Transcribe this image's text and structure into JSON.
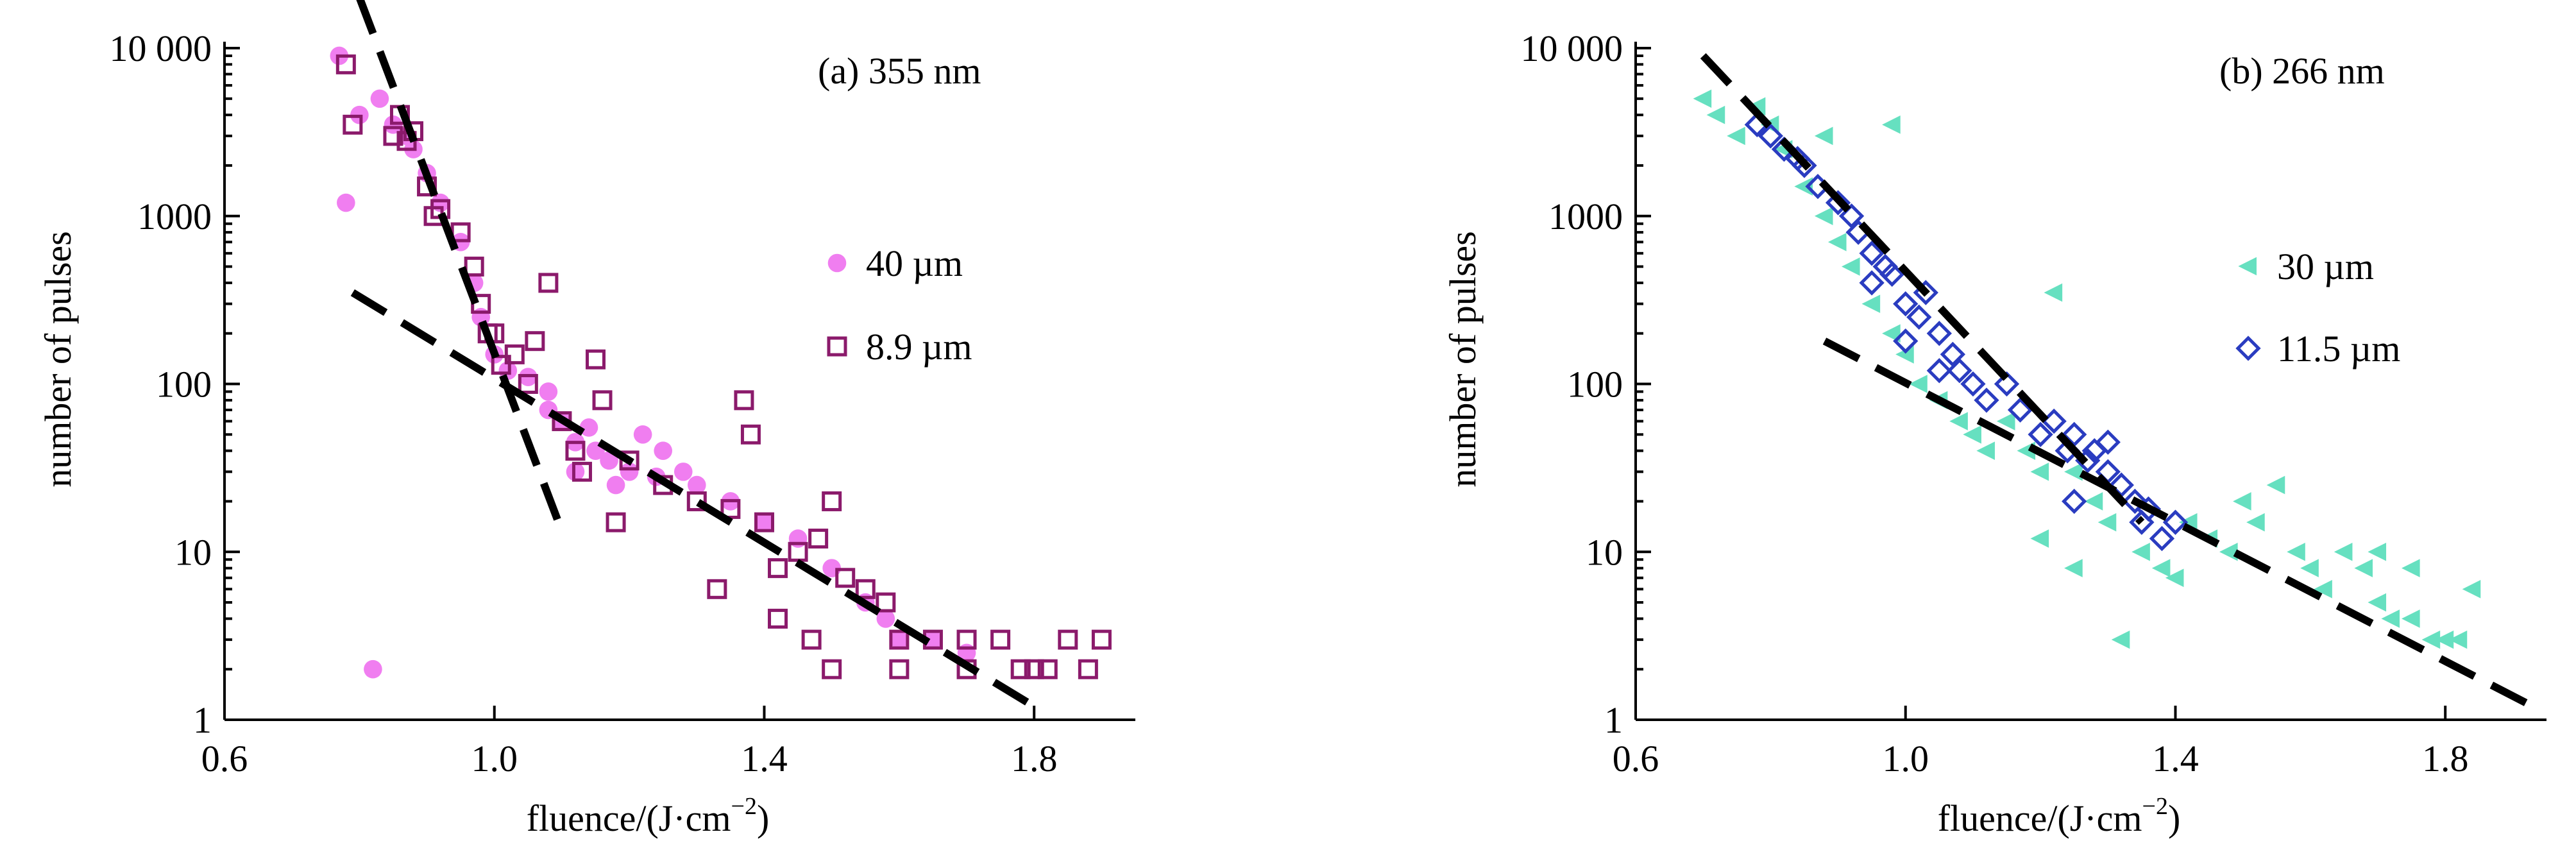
{
  "chart_data": [
    {
      "type": "scatter",
      "title": "(a) 355 nm",
      "xlabel": "fluence/(J·cm",
      "xlabel_sup": "−2",
      "xlabel_end": ")",
      "ylabel": "number of pulses",
      "xlim": [
        0.6,
        1.95
      ],
      "ylim": [
        1,
        10000
      ],
      "yscale": "log",
      "xticks": [
        {
          "v": 0.6,
          "label": "0.6"
        },
        {
          "v": 1.0,
          "label": "1.0"
        },
        {
          "v": 1.4,
          "label": "1.4"
        },
        {
          "v": 1.8,
          "label": "1.8"
        }
      ],
      "yticks": [
        {
          "v": 1,
          "label": "1"
        },
        {
          "v": 10,
          "label": "10"
        },
        {
          "v": 100,
          "label": "100"
        },
        {
          "v": 1000,
          "label": "1000"
        },
        {
          "v": 10000,
          "label": "10 000"
        }
      ],
      "legend_position": "right",
      "series": [
        {
          "name": "40 µm",
          "marker": "circle",
          "color": "#f07ef0",
          "points": [
            [
              0.77,
              9000
            ],
            [
              0.78,
              1200
            ],
            [
              0.8,
              4000
            ],
            [
              0.82,
              2
            ],
            [
              0.83,
              5000
            ],
            [
              0.85,
              3500
            ],
            [
              0.87,
              3000
            ],
            [
              0.88,
              2500
            ],
            [
              0.9,
              1800
            ],
            [
              0.92,
              1200
            ],
            [
              0.95,
              700
            ],
            [
              0.97,
              400
            ],
            [
              0.98,
              250
            ],
            [
              1.0,
              150
            ],
            [
              1.02,
              120
            ],
            [
              1.05,
              110
            ],
            [
              1.08,
              90
            ],
            [
              1.1,
              60
            ],
            [
              1.12,
              45
            ],
            [
              1.15,
              40
            ],
            [
              1.17,
              35
            ],
            [
              1.2,
              30
            ],
            [
              1.22,
              50
            ],
            [
              1.25,
              40
            ],
            [
              1.28,
              30
            ],
            [
              1.3,
              25
            ],
            [
              1.35,
              20
            ],
            [
              1.4,
              15
            ],
            [
              1.45,
              12
            ],
            [
              1.5,
              8
            ],
            [
              1.55,
              5
            ],
            [
              1.58,
              4
            ],
            [
              1.6,
              3
            ],
            [
              1.65,
              3
            ],
            [
              1.7,
              2.5
            ],
            [
              1.12,
              30
            ],
            [
              1.18,
              25
            ],
            [
              1.08,
              70
            ],
            [
              1.14,
              55
            ],
            [
              1.24,
              28
            ]
          ]
        },
        {
          "name": "8.9 µm",
          "marker": "square",
          "color": "#8b1a6b",
          "points": [
            [
              0.78,
              8000
            ],
            [
              0.79,
              3500
            ],
            [
              0.85,
              3000
            ],
            [
              0.86,
              4000
            ],
            [
              0.87,
              2800
            ],
            [
              0.88,
              3200
            ],
            [
              0.9,
              1500
            ],
            [
              0.91,
              1000
            ],
            [
              0.92,
              1100
            ],
            [
              0.95,
              800
            ],
            [
              0.97,
              500
            ],
            [
              0.98,
              300
            ],
            [
              0.99,
              200
            ],
            [
              1.0,
              200
            ],
            [
              1.01,
              130
            ],
            [
              1.03,
              150
            ],
            [
              1.05,
              100
            ],
            [
              1.06,
              180
            ],
            [
              1.08,
              400
            ],
            [
              1.1,
              60
            ],
            [
              1.12,
              40
            ],
            [
              1.13,
              30
            ],
            [
              1.15,
              140
            ],
            [
              1.16,
              80
            ],
            [
              1.18,
              15
            ],
            [
              1.2,
              35
            ],
            [
              1.25,
              25
            ],
            [
              1.3,
              20
            ],
            [
              1.35,
              18
            ],
            [
              1.37,
              80
            ],
            [
              1.38,
              50
            ],
            [
              1.4,
              15
            ],
            [
              1.42,
              8
            ],
            [
              1.45,
              10
            ],
            [
              1.48,
              12
            ],
            [
              1.5,
              20
            ],
            [
              1.52,
              7
            ],
            [
              1.55,
              6
            ],
            [
              1.58,
              5
            ],
            [
              1.6,
              3
            ],
            [
              1.65,
              3
            ],
            [
              1.7,
              3
            ],
            [
              1.75,
              3
            ],
            [
              1.8,
              2
            ],
            [
              1.85,
              3
            ],
            [
              1.88,
              2
            ],
            [
              1.9,
              3
            ],
            [
              1.5,
              2
            ],
            [
              1.6,
              2
            ],
            [
              1.7,
              2
            ],
            [
              1.78,
              2
            ],
            [
              1.82,
              2
            ],
            [
              1.33,
              6
            ],
            [
              1.42,
              4
            ],
            [
              1.47,
              3
            ]
          ]
        }
      ],
      "fit_lines": [
        {
          "x1": 0.8,
          "y1": 20000,
          "x2": 1.095,
          "y2": 15
        },
        {
          "x1": 0.79,
          "y1": 350,
          "x2": 1.8,
          "y2": 1.2
        }
      ]
    },
    {
      "type": "scatter",
      "title": "(b) 266 nm",
      "xlabel": "fluence/(J·cm",
      "xlabel_sup": "−2",
      "xlabel_end": ")",
      "ylabel": "number of pulses",
      "xlim": [
        0.6,
        1.95
      ],
      "ylim": [
        1,
        10000
      ],
      "yscale": "log",
      "xticks": [
        {
          "v": 0.6,
          "label": "0.6"
        },
        {
          "v": 1.0,
          "label": "1.0"
        },
        {
          "v": 1.4,
          "label": "1.4"
        },
        {
          "v": 1.8,
          "label": "1.8"
        }
      ],
      "yticks": [
        {
          "v": 1,
          "label": "1"
        },
        {
          "v": 10,
          "label": "10"
        },
        {
          "v": 100,
          "label": "100"
        },
        {
          "v": 1000,
          "label": "1000"
        },
        {
          "v": 10000,
          "label": "10 000"
        }
      ],
      "legend_position": "right",
      "series": [
        {
          "name": "30 µm",
          "marker": "triangle-left",
          "color": "#66e0c0",
          "points": [
            [
              0.7,
              5000
            ],
            [
              0.72,
              4000
            ],
            [
              0.75,
              3000
            ],
            [
              0.78,
              4500
            ],
            [
              0.8,
              3500
            ],
            [
              0.82,
              2500
            ],
            [
              0.85,
              1500
            ],
            [
              0.88,
              1000
            ],
            [
              0.9,
              700
            ],
            [
              0.92,
              500
            ],
            [
              0.95,
              300
            ],
            [
              0.98,
              200
            ],
            [
              1.0,
              150
            ],
            [
              1.02,
              100
            ],
            [
              1.05,
              80
            ],
            [
              1.08,
              60
            ],
            [
              1.1,
              50
            ],
            [
              1.12,
              40
            ],
            [
              1.15,
              60
            ],
            [
              1.18,
              40
            ],
            [
              1.2,
              30
            ],
            [
              1.22,
              350
            ],
            [
              1.25,
              30
            ],
            [
              1.28,
              20
            ],
            [
              1.3,
              15
            ],
            [
              1.32,
              3
            ],
            [
              1.35,
              10
            ],
            [
              1.38,
              8
            ],
            [
              1.4,
              7
            ],
            [
              1.42,
              15
            ],
            [
              1.45,
              12
            ],
            [
              1.48,
              10
            ],
            [
              1.5,
              20
            ],
            [
              1.52,
              15
            ],
            [
              1.55,
              25
            ],
            [
              1.58,
              10
            ],
            [
              1.6,
              8
            ],
            [
              1.62,
              6
            ],
            [
              1.65,
              10
            ],
            [
              1.68,
              8
            ],
            [
              1.7,
              5
            ],
            [
              1.72,
              4
            ],
            [
              1.75,
              4
            ],
            [
              1.78,
              3
            ],
            [
              1.8,
              3
            ],
            [
              1.82,
              3
            ],
            [
              1.84,
              6
            ],
            [
              1.75,
              8
            ],
            [
              1.7,
              10
            ],
            [
              0.88,
              3000
            ],
            [
              0.98,
              3500
            ],
            [
              1.2,
              12
            ],
            [
              1.25,
              8
            ]
          ]
        },
        {
          "name": "11.5 µm",
          "marker": "diamond",
          "color": "#2a3cc0",
          "points": [
            [
              0.78,
              3500
            ],
            [
              0.8,
              3000
            ],
            [
              0.82,
              2500
            ],
            [
              0.84,
              2200
            ],
            [
              0.85,
              2000
            ],
            [
              0.87,
              1500
            ],
            [
              0.9,
              1200
            ],
            [
              0.92,
              1000
            ],
            [
              0.93,
              800
            ],
            [
              0.95,
              600
            ],
            [
              0.97,
              500
            ],
            [
              0.98,
              450
            ],
            [
              1.0,
              300
            ],
            [
              1.02,
              250
            ],
            [
              1.03,
              350
            ],
            [
              1.05,
              200
            ],
            [
              1.07,
              150
            ],
            [
              1.08,
              120
            ],
            [
              1.1,
              100
            ],
            [
              1.12,
              80
            ],
            [
              1.15,
              100
            ],
            [
              1.17,
              70
            ],
            [
              1.2,
              50
            ],
            [
              1.22,
              60
            ],
            [
              1.24,
              40
            ],
            [
              1.25,
              50
            ],
            [
              1.27,
              35
            ],
            [
              1.28,
              40
            ],
            [
              1.3,
              30
            ],
            [
              1.32,
              25
            ],
            [
              1.34,
              20
            ],
            [
              1.35,
              15
            ],
            [
              1.36,
              18
            ],
            [
              1.38,
              12
            ],
            [
              1.4,
              15
            ],
            [
              1.05,
              120
            ],
            [
              1.0,
              180
            ],
            [
              0.95,
              400
            ],
            [
              1.25,
              20
            ],
            [
              1.3,
              45
            ]
          ]
        }
      ],
      "fit_lines": [
        {
          "x1": 0.7,
          "y1": 9000,
          "x2": 1.35,
          "y2": 15
        },
        {
          "x1": 0.88,
          "y1": 180,
          "x2": 1.93,
          "y2": 1.2
        }
      ]
    }
  ]
}
